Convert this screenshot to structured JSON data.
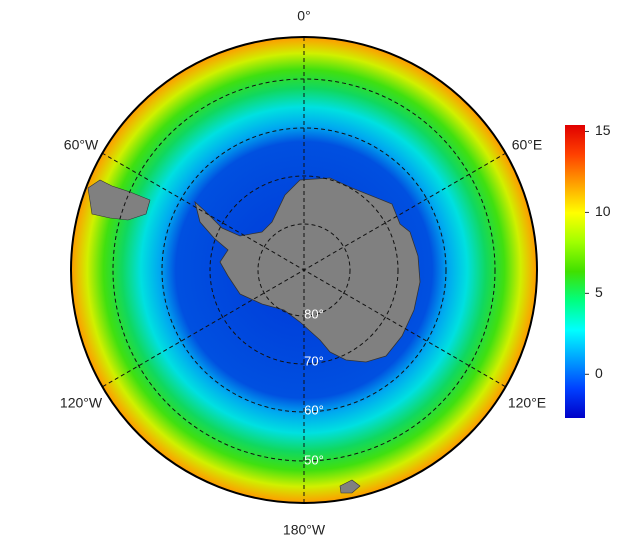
{
  "map": {
    "longitude_labels": [
      "0°",
      "60°E",
      "120°E",
      "180°W",
      "120°W",
      "60°W"
    ],
    "latitude_labels": [
      "80°",
      "70°",
      "60°",
      "50°"
    ],
    "colorbar": {
      "range": [
        -2.7,
        15.4
      ],
      "ticks": [
        15,
        10,
        5,
        0
      ],
      "colors": [
        "#0000c8",
        "#0040ff",
        "#00a0ff",
        "#00ffff",
        "#00ff80",
        "#40e000",
        "#a0ff00",
        "#ffff00",
        "#ffa000",
        "#ff4000",
        "#e00000"
      ]
    }
  }
}
